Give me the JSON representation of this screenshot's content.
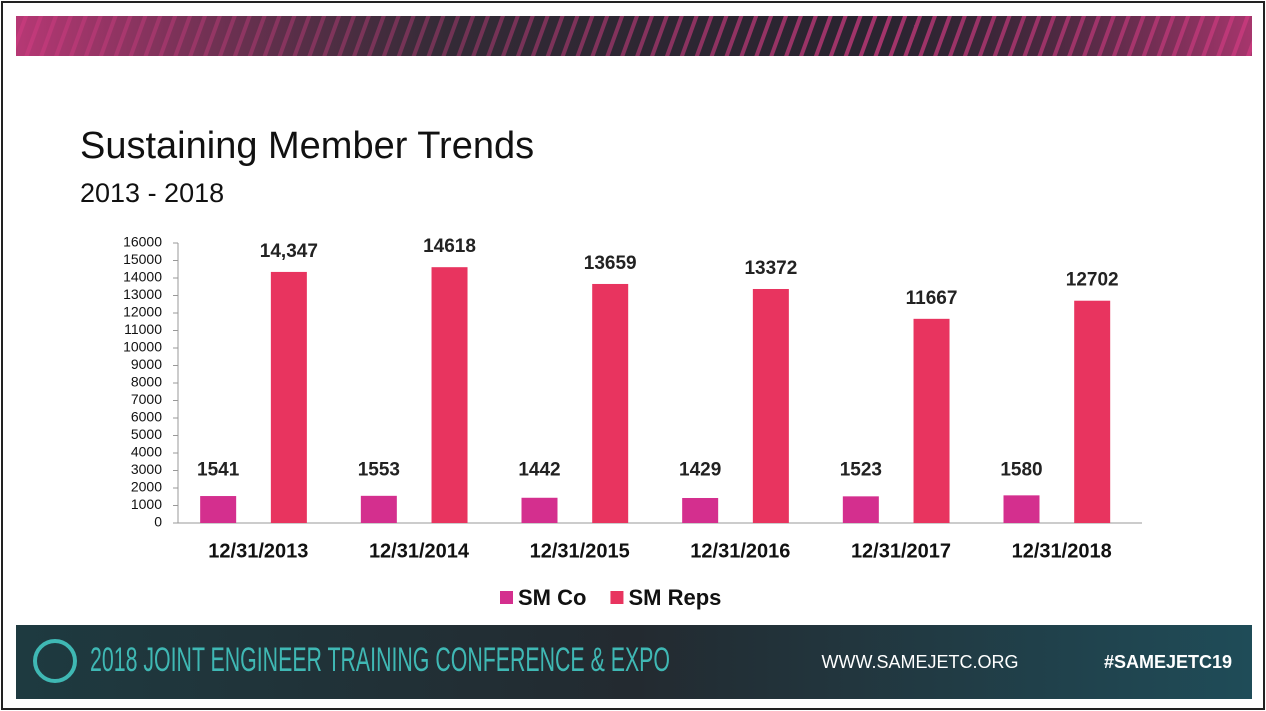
{
  "chart_data": {
    "type": "bar",
    "title": "Sustaining Member Trends",
    "subtitle": "2013 - 2018",
    "categories": [
      "12/31/2013",
      "12/31/2014",
      "12/31/2015",
      "12/31/2016",
      "12/31/2017",
      "12/31/2018"
    ],
    "series": [
      {
        "name": "SM Co",
        "color": "#d42f8e",
        "values": [
          1541,
          1553,
          1442,
          1429,
          1523,
          1580
        ]
      },
      {
        "name": "SM Reps",
        "color": "#e8345f",
        "values": [
          14347,
          14618,
          13659,
          13372,
          11667,
          12702
        ],
        "value_labels": [
          "14,347",
          "14618",
          "13659",
          "13372",
          "11667",
          "12702"
        ]
      }
    ],
    "ylim": [
      0,
      16000
    ],
    "yticks": [
      0,
      1000,
      2000,
      3000,
      4000,
      5000,
      6000,
      7000,
      8000,
      9000,
      10000,
      11000,
      12000,
      13000,
      14000,
      15000,
      16000
    ],
    "grid": false,
    "legend": "bottom"
  },
  "footer": {
    "conference": "2018 JOINT ENGINEER TRAINING CONFERENCE & EXPO",
    "website": "WWW.SAMEJETC.ORG",
    "hashtag": "#SAMEJETC19"
  }
}
